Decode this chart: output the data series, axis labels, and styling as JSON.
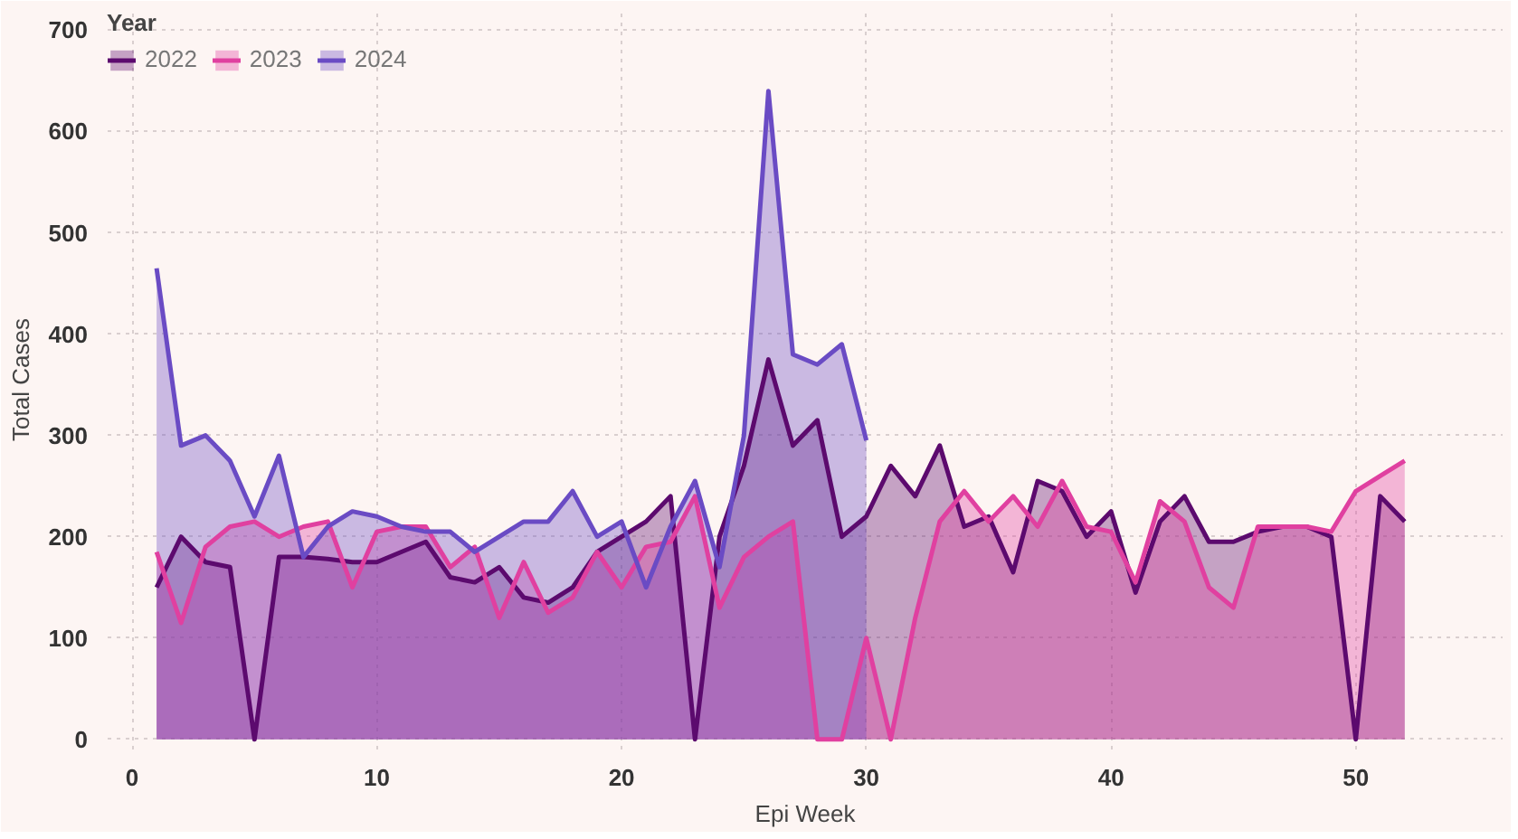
{
  "chart_data": {
    "type": "area",
    "xlabel": "Epi Week",
    "ylabel": "Total Cases",
    "legend_title": "Year",
    "legend": "top left",
    "grid": true,
    "xlim": [
      -1,
      56
    ],
    "ylim": [
      -10,
      720
    ],
    "xticks": [
      0,
      10,
      20,
      30,
      40,
      50
    ],
    "yticks": [
      0,
      100,
      200,
      300,
      400,
      500,
      600,
      700
    ],
    "series": [
      {
        "name": "2022",
        "color": "#5c0a6e",
        "x": [
          1,
          2,
          3,
          4,
          5,
          6,
          7,
          8,
          9,
          10,
          11,
          12,
          13,
          14,
          15,
          16,
          17,
          18,
          19,
          20,
          21,
          22,
          23,
          24,
          25,
          26,
          27,
          28,
          29,
          30,
          31,
          32,
          33,
          34,
          35,
          36,
          37,
          38,
          39,
          40,
          41,
          42,
          43,
          44,
          45,
          46,
          47,
          48,
          49,
          50,
          51,
          52
        ],
        "values": [
          150,
          200,
          175,
          170,
          0,
          180,
          180,
          178,
          175,
          175,
          185,
          195,
          160,
          155,
          170,
          140,
          135,
          150,
          185,
          200,
          215,
          240,
          0,
          200,
          270,
          375,
          290,
          315,
          200,
          220,
          270,
          240,
          290,
          210,
          220,
          165,
          255,
          245,
          200,
          225,
          145,
          215,
          240,
          195,
          195,
          205,
          210,
          210,
          200,
          0,
          240,
          215
        ]
      },
      {
        "name": "2023",
        "color": "#e040a0",
        "x": [
          1,
          2,
          3,
          4,
          5,
          6,
          7,
          8,
          9,
          10,
          11,
          12,
          13,
          14,
          15,
          16,
          17,
          18,
          19,
          20,
          21,
          22,
          23,
          24,
          25,
          26,
          27,
          28,
          29,
          30,
          31,
          32,
          33,
          34,
          35,
          36,
          37,
          38,
          39,
          40,
          41,
          42,
          43,
          44,
          45,
          46,
          47,
          48,
          49,
          50,
          51,
          52
        ],
        "values": [
          185,
          115,
          190,
          210,
          215,
          200,
          210,
          215,
          150,
          205,
          210,
          210,
          170,
          190,
          120,
          175,
          125,
          140,
          185,
          150,
          190,
          195,
          240,
          130,
          180,
          200,
          215,
          0,
          0,
          100,
          0,
          120,
          215,
          245,
          215,
          240,
          210,
          255,
          210,
          205,
          155,
          235,
          215,
          150,
          130,
          210,
          210,
          210,
          205,
          245,
          260,
          275
        ]
      },
      {
        "name": "2024",
        "color": "#6a4bc4",
        "x": [
          1,
          2,
          3,
          4,
          5,
          6,
          7,
          8,
          9,
          10,
          11,
          12,
          13,
          14,
          15,
          16,
          17,
          18,
          19,
          20,
          21,
          22,
          23,
          24,
          25,
          26,
          27,
          28,
          29,
          30
        ],
        "values": [
          465,
          290,
          300,
          275,
          220,
          280,
          180,
          210,
          225,
          220,
          210,
          205,
          205,
          185,
          200,
          215,
          215,
          245,
          200,
          215,
          150,
          210,
          255,
          170,
          300,
          640,
          380,
          370,
          390,
          295
        ]
      }
    ]
  }
}
